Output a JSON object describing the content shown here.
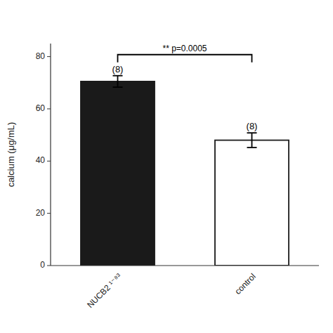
{
  "chart_data": {
    "type": "bar",
    "ylabel": "calcium (μg/mL)",
    "categories": [
      "NUCB2 ¹⁻⁸³",
      "control"
    ],
    "values": [
      70.5,
      48.0
    ],
    "errors": [
      2.2,
      2.8
    ],
    "colors": [
      "#1a1a1a",
      "#ffffff"
    ],
    "bar_labels": [
      "(8)",
      "(8)"
    ],
    "annotations": [
      "** p=0.0005"
    ],
    "ylim": [
      0,
      85
    ],
    "yticks": [
      0,
      20,
      40,
      60,
      80
    ],
    "grid": false
  }
}
